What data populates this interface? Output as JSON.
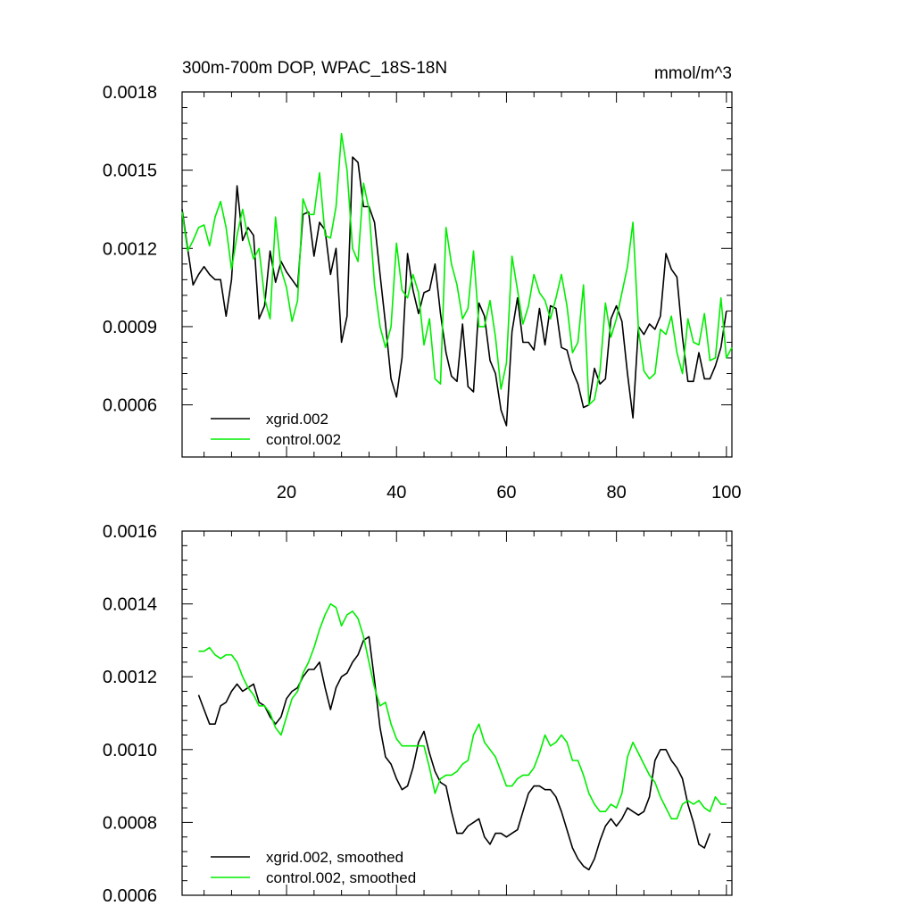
{
  "title": "300m-700m DOP, WPAC_18S-18N",
  "units": "mmol/m^3",
  "colors": {
    "xgrid": "#000000",
    "control": "#00ee00",
    "axis": "#000000"
  },
  "chart_data": [
    {
      "type": "line",
      "title": "300m-700m DOP, WPAC_18S-18N",
      "units": "mmol/m^3",
      "xlabel": "",
      "ylabel": "",
      "xlim": [
        1,
        101
      ],
      "ylim": [
        0.0004,
        0.0018
      ],
      "x_ticks": [
        20,
        40,
        60,
        80,
        100
      ],
      "x_tick_labels": [
        "20",
        "40",
        "60",
        "80",
        "100"
      ],
      "y_ticks": [
        0.0006,
        0.0009,
        0.0012,
        0.0015,
        0.0018
      ],
      "y_tick_labels": [
        "0.0006",
        "0.0009",
        "0.0012",
        "0.0015",
        "0.0018"
      ],
      "legend_position": "bottom-left",
      "x_start": 1,
      "series": [
        {
          "name": "xgrid.002",
          "color": "#000000",
          "values": [
            0.00135,
            0.0012,
            0.00106,
            0.0011,
            0.00113,
            0.0011,
            0.00108,
            0.00108,
            0.00094,
            0.00108,
            0.00144,
            0.00123,
            0.00128,
            0.00125,
            0.00093,
            0.00098,
            0.00119,
            0.00107,
            0.00115,
            0.00111,
            0.00108,
            0.00105,
            0.00133,
            0.00134,
            0.00117,
            0.0013,
            0.00127,
            0.0011,
            0.0012,
            0.00084,
            0.00094,
            0.00155,
            0.00153,
            0.00136,
            0.00136,
            0.0013,
            0.0011,
            0.00091,
            0.0007,
            0.00063,
            0.00078,
            0.00118,
            0.00104,
            0.00095,
            0.00103,
            0.00104,
            0.00114,
            0.00095,
            0.0008,
            0.00071,
            0.00069,
            0.00091,
            0.00067,
            0.00065,
            0.00099,
            0.00094,
            0.00077,
            0.00072,
            0.00058,
            0.00052,
            0.00088,
            0.00101,
            0.00084,
            0.00084,
            0.00081,
            0.00097,
            0.00083,
            0.00098,
            0.00097,
            0.00082,
            0.00081,
            0.00073,
            0.00068,
            0.00059,
            0.0006,
            0.00074,
            0.00068,
            0.0007,
            0.00093,
            0.00098,
            0.00092,
            0.00072,
            0.00055,
            0.0009,
            0.00087,
            0.00091,
            0.00089,
            0.00094,
            0.00118,
            0.00112,
            0.00109,
            0.00086,
            0.00069,
            0.00069,
            0.0008,
            0.0007,
            0.0007,
            0.00075,
            0.00082,
            0.00096
          ]
        },
        {
          "name": "control.002",
          "color": "#00ee00",
          "values": [
            0.00134,
            0.00119,
            0.00123,
            0.00128,
            0.00129,
            0.00121,
            0.00132,
            0.00138,
            0.00128,
            0.00112,
            0.00125,
            0.00135,
            0.00124,
            0.00116,
            0.0012,
            0.00101,
            0.00093,
            0.00132,
            0.00112,
            0.00105,
            0.00092,
            0.001,
            0.00139,
            0.00133,
            0.00133,
            0.00149,
            0.00125,
            0.00124,
            0.00136,
            0.00164,
            0.0015,
            0.0012,
            0.00115,
            0.00145,
            0.00135,
            0.00106,
            0.0009,
            0.00082,
            0.0009,
            0.00122,
            0.00104,
            0.00101,
            0.0011,
            0.00103,
            0.00083,
            0.00093,
            0.0007,
            0.00068,
            0.00128,
            0.00114,
            0.00106,
            0.00093,
            0.00097,
            0.00119,
            0.0009,
            0.0009,
            0.001,
            0.00086,
            0.00066,
            0.00076,
            0.00117,
            0.00104,
            0.00091,
            0.00098,
            0.0011,
            0.00103,
            0.001,
            0.00093,
            0.00101,
            0.0011,
            0.00098,
            0.0008,
            0.00084,
            0.00106,
            0.0006,
            0.00062,
            0.00073,
            0.00099,
            0.00086,
            0.00093,
            0.00103,
            0.00113,
            0.0013,
            0.00089,
            0.00073,
            0.0007,
            0.00072,
            0.00089,
            0.00087,
            0.00094,
            0.0008,
            0.00072,
            0.00093,
            0.00084,
            0.00083,
            0.00095,
            0.00077,
            0.00078,
            0.00101,
            0.00078,
            0.00082
          ]
        }
      ]
    },
    {
      "type": "line",
      "title": "",
      "xlabel": "",
      "ylabel": "",
      "xlim": [
        1,
        101
      ],
      "ylim": [
        0.0006,
        0.0016
      ],
      "x_ticks": [
        20,
        40,
        60,
        80,
        100
      ],
      "x_tick_labels": [],
      "y_ticks": [
        0.0006,
        0.0008,
        0.001,
        0.0012,
        0.0014,
        0.0016
      ],
      "y_tick_labels": [
        "0.0006",
        "0.0008",
        "0.0010",
        "0.0012",
        "0.0014",
        "0.0016"
      ],
      "legend_position": "bottom-left",
      "x_start": 4,
      "series": [
        {
          "name": "xgrid.002, smoothed",
          "color": "#000000",
          "values": [
            0.00115,
            0.00111,
            0.00107,
            0.00107,
            0.00112,
            0.00113,
            0.00116,
            0.00118,
            0.00116,
            0.00117,
            0.00118,
            0.00113,
            0.00112,
            0.00109,
            0.00107,
            0.00109,
            0.00114,
            0.00116,
            0.00117,
            0.0012,
            0.00122,
            0.00122,
            0.00124,
            0.00117,
            0.00111,
            0.00117,
            0.0012,
            0.00121,
            0.00124,
            0.00126,
            0.0013,
            0.00131,
            0.00119,
            0.00106,
            0.00098,
            0.00096,
            0.00092,
            0.00089,
            0.0009,
            0.00095,
            0.00102,
            0.00105,
            0.00099,
            0.00094,
            0.00091,
            0.0009,
            0.00083,
            0.00077,
            0.00077,
            0.00079,
            0.0008,
            0.00081,
            0.00076,
            0.00074,
            0.00077,
            0.00077,
            0.00076,
            0.00077,
            0.00078,
            0.00083,
            0.00088,
            0.0009,
            0.0009,
            0.00089,
            0.00089,
            0.00087,
            0.00083,
            0.00078,
            0.00073,
            0.0007,
            0.00068,
            0.00067,
            0.0007,
            0.00075,
            0.00079,
            0.00081,
            0.00079,
            0.00081,
            0.00084,
            0.00083,
            0.00082,
            0.00083,
            0.00087,
            0.00097,
            0.001,
            0.001,
            0.00097,
            0.00095,
            0.00092,
            0.00085,
            0.0008,
            0.00074,
            0.00073,
            0.00077
          ]
        },
        {
          "name": "control.002, smoothed",
          "color": "#00ee00",
          "values": [
            0.00127,
            0.00127,
            0.00128,
            0.00126,
            0.00125,
            0.00126,
            0.00126,
            0.00124,
            0.0012,
            0.00117,
            0.00115,
            0.00112,
            0.00112,
            0.0011,
            0.00106,
            0.00104,
            0.00109,
            0.00114,
            0.00116,
            0.00121,
            0.00124,
            0.00128,
            0.00133,
            0.00137,
            0.0014,
            0.00139,
            0.00134,
            0.00137,
            0.00138,
            0.00136,
            0.00131,
            0.00124,
            0.00117,
            0.00112,
            0.00113,
            0.00107,
            0.00103,
            0.00101,
            0.00101,
            0.00101,
            0.00101,
            0.00101,
            0.00095,
            0.00088,
            0.00092,
            0.00093,
            0.00093,
            0.00094,
            0.00096,
            0.00097,
            0.00104,
            0.00107,
            0.00102,
            0.001,
            0.00098,
            0.00094,
            0.0009,
            0.0009,
            0.00092,
            0.00093,
            0.00093,
            0.00095,
            0.00099,
            0.00104,
            0.00101,
            0.00102,
            0.00104,
            0.00102,
            0.00097,
            0.00097,
            0.00093,
            0.00088,
            0.00085,
            0.00083,
            0.00083,
            0.00085,
            0.00084,
            0.00088,
            0.00098,
            0.00102,
            0.00099,
            0.00096,
            0.00093,
            0.00091,
            0.00087,
            0.00084,
            0.00081,
            0.00081,
            0.00085,
            0.00086,
            0.00085,
            0.00086,
            0.00084,
            0.00083,
            0.00087,
            0.00085,
            0.00085
          ]
        }
      ]
    }
  ]
}
